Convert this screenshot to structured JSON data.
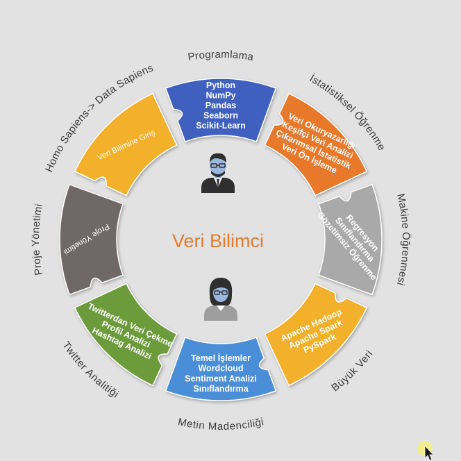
{
  "center": {
    "title": "Veri Bilimci",
    "man_icon": "data-scientist-man-icon",
    "woman_icon": "data-scientist-woman-icon"
  },
  "segments": [
    {
      "key": "giris",
      "outer_label": "Homo Sapiens-> Data Sapiens",
      "lines": [
        "Veri Bilimine Giriş"
      ],
      "color": "#f3b02b"
    },
    {
      "key": "programlama",
      "outer_label": "Programlama",
      "lines": [
        "Python",
        "NumPy",
        "Pandas",
        "Seaborn",
        "Scikit-Learn"
      ],
      "color": "#3f61bf"
    },
    {
      "key": "istatistik",
      "outer_label": "İstatistiksel Öğrenme",
      "lines": [
        "Veri Okuryazarlığı",
        "Keşifçi Veri Analizi",
        "Çıkarımsal İstatistik",
        "Veri Ön İşleme"
      ],
      "color": "#e8782c"
    },
    {
      "key": "makine",
      "outer_label": "Makine Öğrenmesi",
      "lines": [
        "Regresyon",
        "Sınıflandırma",
        "Gözetimsiz Öğrenme"
      ],
      "color": "#a9a9a9"
    },
    {
      "key": "buyukveri",
      "outer_label": "Büyük Veri",
      "lines": [
        "Apache Hadoop",
        "Apache Spark",
        "PySpark"
      ],
      "color": "#f3b02b"
    },
    {
      "key": "metin",
      "outer_label": "Metin Madenciliği",
      "lines": [
        "Temel İşlemler",
        "Wordcloud",
        "Sentiment Analizi",
        "Sınıflandırma"
      ],
      "color": "#4b8ed8"
    },
    {
      "key": "twitter",
      "outer_label": "Twitter Analitiği",
      "lines": [
        "Twitterdan Veri Çekme",
        "Profil Analizi",
        "Hashtag Analizi"
      ],
      "color": "#6c9b3a"
    },
    {
      "key": "proje",
      "outer_label": "Proje Yönetimi",
      "lines": [
        "Proje Yönetimi"
      ],
      "color": "#6f6866"
    }
  ],
  "cursor_icon": "mouse-cursor-icon"
}
